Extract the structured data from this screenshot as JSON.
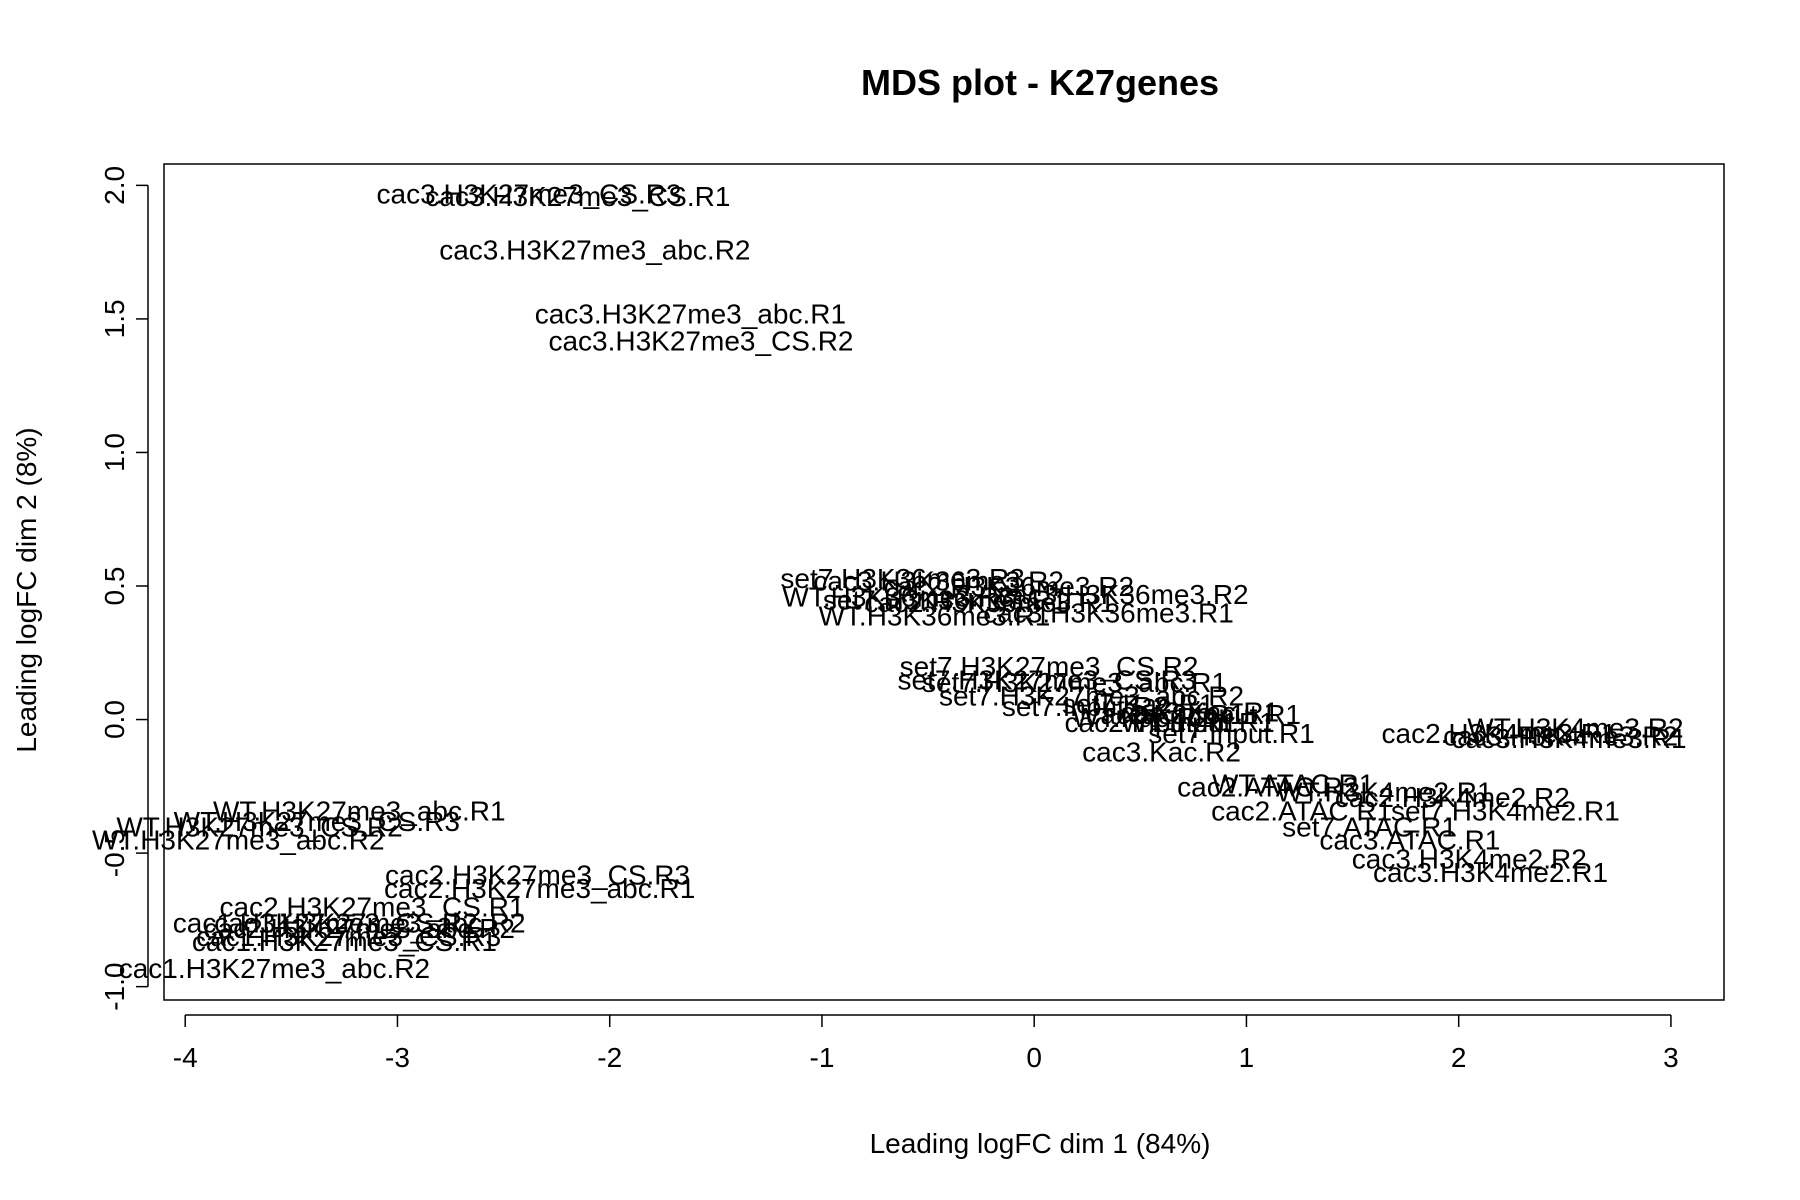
{
  "chart_data": {
    "type": "scatter",
    "title": "MDS plot - K27genes",
    "xlabel": "Leading logFC dim 1 (84%)",
    "ylabel": "Leading logFC dim 2 (8%)",
    "xlim": [
      -4.1,
      3.25
    ],
    "ylim": [
      -1.05,
      2.08
    ],
    "xticks": [
      -4,
      -3,
      -2,
      -1,
      0,
      1,
      2,
      3
    ],
    "yticks": [
      -1.0,
      -0.5,
      0.0,
      0.5,
      1.0,
      1.5,
      2.0
    ],
    "xtick_labels": [
      "-4",
      "-3",
      "-2",
      "-1",
      "0",
      "1",
      "2",
      "3"
    ],
    "ytick_labels": [
      "-1.0",
      "-0.5",
      "0.0",
      "0.5",
      "1.0",
      "1.5",
      "2.0"
    ],
    "grid": false,
    "marker": "text-labels",
    "points": [
      {
        "label": "cac3.H3K27me3_CS.R3",
        "x": -2.38,
        "y": 1.97
      },
      {
        "label": "cac3.H3K27me3_CS.R1",
        "x": -2.15,
        "y": 1.96
      },
      {
        "label": "cac3.H3K27me3_abc.R2",
        "x": -2.07,
        "y": 1.76
      },
      {
        "label": "cac3.H3K27me3_abc.R1",
        "x": -1.62,
        "y": 1.52
      },
      {
        "label": "cac3.H3K27me3_CS.R2",
        "x": -1.57,
        "y": 1.42
      },
      {
        "label": "set7.H3K36me3.R3",
        "x": -0.62,
        "y": 0.53
      },
      {
        "label": "cac3.H3K36me3.R2",
        "x": -0.45,
        "y": 0.52
      },
      {
        "label": "cac2.H3K36me3.R2",
        "x": -0.12,
        "y": 0.5
      },
      {
        "label": "cac3.H3K36me3.R2",
        "x": 0.42,
        "y": 0.47
      },
      {
        "label": "WT.H3K36me3.R3",
        "x": -0.64,
        "y": 0.46
      },
      {
        "label": "set7.H3K36me3.R1",
        "x": -0.42,
        "y": 0.45
      },
      {
        "label": "cac2.H3K36me3.R1",
        "x": -0.21,
        "y": 0.44
      },
      {
        "label": "WT.H3K36me3.R1",
        "x": -0.47,
        "y": 0.39
      },
      {
        "label": "cac3.H3K36me3.R1",
        "x": 0.35,
        "y": 0.4
      },
      {
        "label": "set7.H3K27me3_CS.R2",
        "x": 0.07,
        "y": 0.2
      },
      {
        "label": "set7.H3K27me3_CS.R3",
        "x": 0.06,
        "y": 0.15
      },
      {
        "label": "set7.H3K27me3_abc.R1",
        "x": 0.19,
        "y": 0.14
      },
      {
        "label": "set7.H3K27me3_abc.R2",
        "x": 0.27,
        "y": 0.09
      },
      {
        "label": "set7.Input.R2",
        "x": 0.24,
        "y": 0.05
      },
      {
        "label": "set7.Kac.R1",
        "x": 0.49,
        "y": 0.06
      },
      {
        "label": "cac2.Kac.R1",
        "x": 0.62,
        "y": 0.02
      },
      {
        "label": "cac3.Kac.R1",
        "x": 0.78,
        "y": 0.03
      },
      {
        "label": "WT.Kac.R2",
        "x": 0.51,
        "y": 0.01
      },
      {
        "label": "cac2.Input.R1",
        "x": 0.55,
        "y": -0.01
      },
      {
        "label": "WT.Input.R1",
        "x": 0.77,
        "y": -0.01
      },
      {
        "label": "cac3.Input.R1",
        "x": 0.85,
        "y": 0.02
      },
      {
        "label": "set7.Input.R1",
        "x": 0.93,
        "y": -0.05
      },
      {
        "label": "cac3.Kac.R2",
        "x": 0.6,
        "y": -0.12
      },
      {
        "label": "cac2.H3K4me3.R1",
        "x": 2.19,
        "y": -0.05
      },
      {
        "label": "WT.H3K4me3.R2",
        "x": 2.55,
        "y": -0.03
      },
      {
        "label": "cac3.H3K4me3.R2",
        "x": 2.48,
        "y": -0.06
      },
      {
        "label": "cac3.H3K4me3.R1",
        "x": 2.52,
        "y": -0.07
      },
      {
        "label": "WT.ATAC.R1",
        "x": 1.22,
        "y": -0.24
      },
      {
        "label": "cac2.ATAC.R2",
        "x": 1.1,
        "y": -0.25
      },
      {
        "label": "WT.H3K4me2.R1",
        "x": 1.65,
        "y": -0.27
      },
      {
        "label": "cac2.H3K4me2.R2",
        "x": 1.97,
        "y": -0.29
      },
      {
        "label": "cac2.ATAC.R1",
        "x": 1.26,
        "y": -0.34
      },
      {
        "label": "set7.H3K4me2.R1",
        "x": 2.22,
        "y": -0.34
      },
      {
        "label": "set7.ATAC.R1",
        "x": 1.58,
        "y": -0.4
      },
      {
        "label": "cac3.ATAC.R1",
        "x": 1.77,
        "y": -0.45
      },
      {
        "label": "cac3.H3K4me2.R2",
        "x": 2.05,
        "y": -0.52
      },
      {
        "label": "cac3.H3K4me2.R1",
        "x": 2.15,
        "y": -0.57
      },
      {
        "label": "WT.H3K27me3_abc.R1",
        "x": -3.18,
        "y": -0.34
      },
      {
        "label": "WT.H3K27me3_CS.R3",
        "x": -3.38,
        "y": -0.38
      },
      {
        "label": "WT.H3K27me3_CS.R2",
        "x": -3.65,
        "y": -0.4
      },
      {
        "label": "WT.H3K27me3_abc.R2",
        "x": -3.75,
        "y": -0.45
      },
      {
        "label": "cac2.H3K27me3_CS.R3",
        "x": -2.34,
        "y": -0.58
      },
      {
        "label": "cac2.H3K27me3_abc.R1",
        "x": -2.33,
        "y": -0.63
      },
      {
        "label": "cac2.H3K27me3_CS.R1",
        "x": -3.12,
        "y": -0.7
      },
      {
        "label": "cac1.H3K27me3_abc.R2",
        "x": -3.13,
        "y": -0.76
      },
      {
        "label": "cac1.H3K27me3_CS.R2",
        "x": -3.34,
        "y": -0.76
      },
      {
        "label": "cac2.H3K27me3_abc.R2",
        "x": -3.18,
        "y": -0.78
      },
      {
        "label": "cac1.H3K27me3_CS.R3",
        "x": -3.23,
        "y": -0.81
      },
      {
        "label": "cac1.H3K27me3_CS.R1",
        "x": -3.25,
        "y": -0.83
      },
      {
        "label": "cac1.H3K27me3_abc.R2",
        "x": -3.58,
        "y": -0.93
      }
    ]
  }
}
